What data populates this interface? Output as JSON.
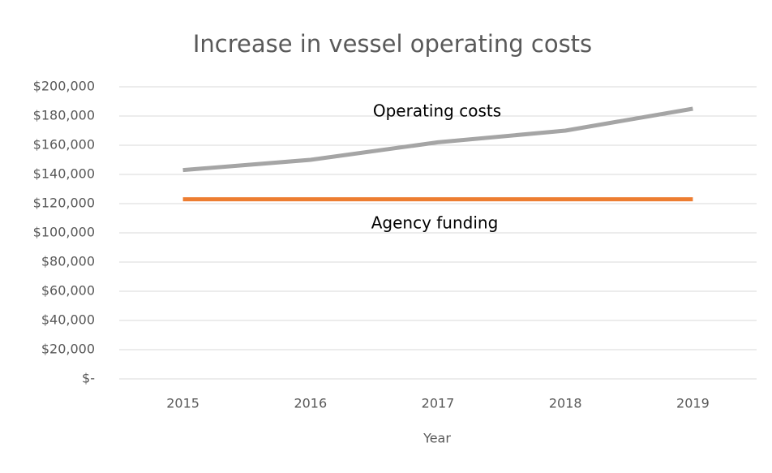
{
  "chart_data": {
    "type": "line",
    "title": "Increase in vessel operating costs",
    "x_label": "Year",
    "categories": [
      "2015",
      "2016",
      "2017",
      "2018",
      "2019"
    ],
    "series": [
      {
        "name": "Operating costs",
        "color": "#a5a5a5",
        "values": [
          143000,
          150000,
          162000,
          170000,
          185000
        ]
      },
      {
        "name": "Agency funding",
        "color": "#ed7d31",
        "values": [
          123000,
          123000,
          123000,
          123000,
          123000
        ]
      }
    ],
    "ylim": [
      0,
      200000
    ],
    "yticks": [
      {
        "value": 0,
        "label": "$-"
      },
      {
        "value": 20000,
        "label": "$20,000"
      },
      {
        "value": 40000,
        "label": "$40,000"
      },
      {
        "value": 60000,
        "label": "$60,000"
      },
      {
        "value": 80000,
        "label": "$80,000"
      },
      {
        "value": 100000,
        "label": "$100,000"
      },
      {
        "value": 120000,
        "label": "$120,000"
      },
      {
        "value": 140000,
        "label": "$140,000"
      },
      {
        "value": 160000,
        "label": "$160,000"
      },
      {
        "value": 180000,
        "label": "$180,000"
      },
      {
        "value": 200000,
        "label": "$200,000"
      }
    ],
    "grid": true
  }
}
